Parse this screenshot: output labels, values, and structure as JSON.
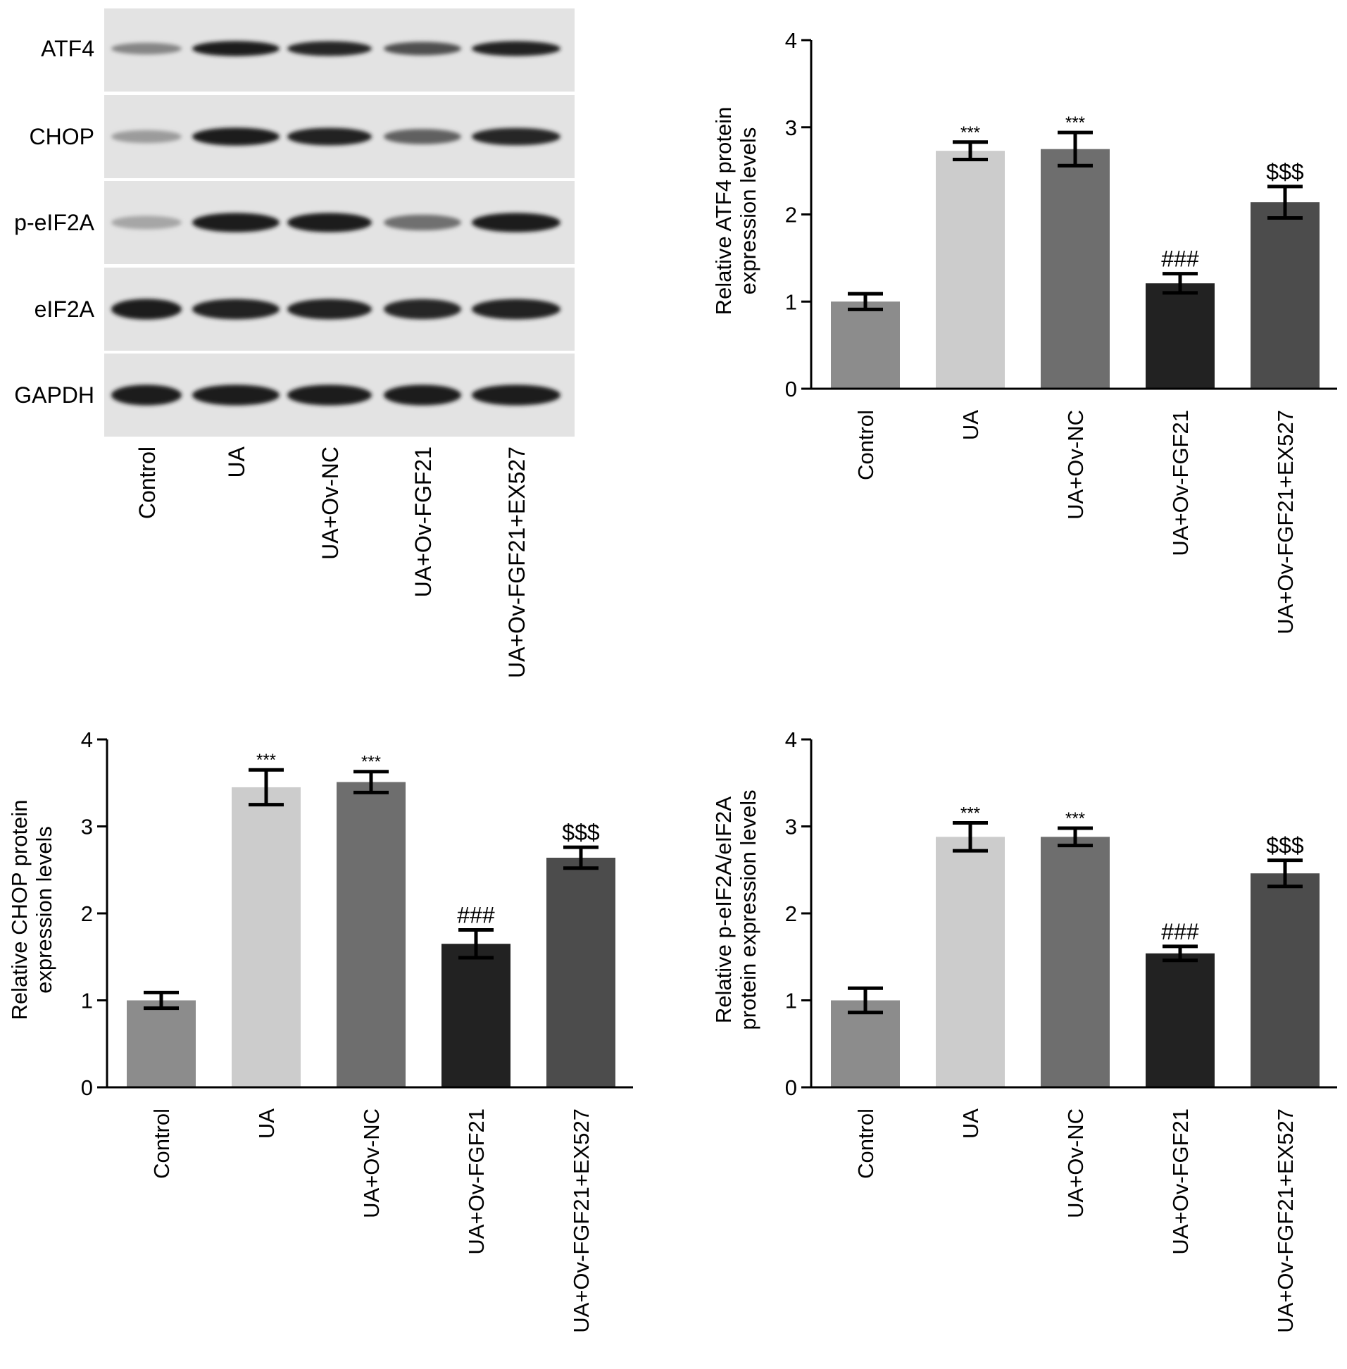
{
  "western_blot": {
    "row_labels": [
      "ATF4",
      "CHOP",
      "p-eIF2A",
      "eIF2A",
      "GAPDH"
    ],
    "lane_labels": [
      "Control",
      "UA",
      "UA+Ov-NC",
      "UA+Ov-FGF21",
      "UA+Ov-FGF21+EX527"
    ]
  },
  "colors": {
    "bars": [
      "#8c8c8c",
      "#cccccc",
      "#6e6e6e",
      "#222222",
      "#4c4c4c"
    ],
    "axis": "#000000"
  },
  "chart_data": [
    {
      "type": "bar",
      "ylabel": [
        "Relative ATF4 protein",
        "expression levels"
      ],
      "ylim": [
        0,
        4
      ],
      "yticks": [
        "0",
        "1",
        "2",
        "3",
        "4"
      ],
      "categories": [
        "Control",
        "UA",
        "UA+Ov-NC",
        "UA+Ov-FGF21",
        "UA+Ov-FGF21+EX527"
      ],
      "values": [
        1.0,
        2.73,
        2.75,
        1.21,
        2.14
      ],
      "errors": [
        0.09,
        0.1,
        0.19,
        0.11,
        0.18
      ],
      "annotations": [
        "",
        "***",
        "***",
        "###",
        "$$$"
      ]
    },
    {
      "type": "bar",
      "ylabel": [
        "Relative CHOP protein",
        "expression levels"
      ],
      "ylim": [
        0,
        4
      ],
      "yticks": [
        "0",
        "1",
        "2",
        "3",
        "4"
      ],
      "categories": [
        "Control",
        "UA",
        "UA+Ov-NC",
        "UA+Ov-FGF21",
        "UA+Ov-FGF21+EX527"
      ],
      "values": [
        1.0,
        3.45,
        3.51,
        1.65,
        2.64
      ],
      "errors": [
        0.09,
        0.2,
        0.12,
        0.16,
        0.12
      ],
      "annotations": [
        "",
        "***",
        "***",
        "###",
        "$$$"
      ]
    },
    {
      "type": "bar",
      "ylabel": [
        "Relative p-eIF2A/eIF2A",
        "protein expression levels"
      ],
      "ylim": [
        0,
        4
      ],
      "yticks": [
        "0",
        "1",
        "2",
        "3",
        "4"
      ],
      "categories": [
        "Control",
        "UA",
        "UA+Ov-NC",
        "UA+Ov-FGF21",
        "UA+Ov-FGF21+EX527"
      ],
      "values": [
        1.0,
        2.88,
        2.88,
        1.54,
        2.46
      ],
      "errors": [
        0.14,
        0.16,
        0.1,
        0.08,
        0.15
      ],
      "annotations": [
        "",
        "***",
        "***",
        "###",
        "$$$"
      ]
    }
  ]
}
